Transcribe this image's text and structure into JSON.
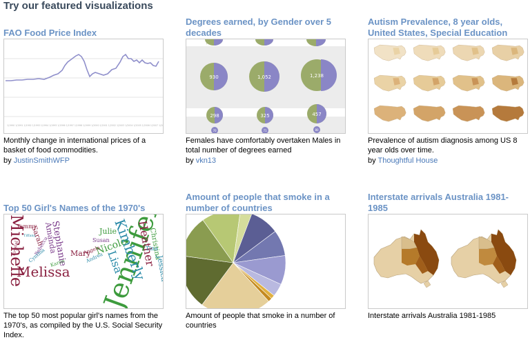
{
  "heading": "Try our featured visualizations",
  "by_label": "by",
  "cards": [
    {
      "title": "FAO Food Price Index",
      "description": "Monthly change in international prices of a basket of food commodities.",
      "author": "JustinSmithWFP"
    },
    {
      "title": "Degrees earned, by Gender over 5 decades",
      "description": "Females have comfortably overtaken Males in total number of degrees earned",
      "author": "vkn13",
      "bubble_labels": [
        "930",
        "1,052",
        "1,238",
        "298",
        "325",
        "457",
        "70",
        "71",
        "80"
      ]
    },
    {
      "title": "Autism Prevalence, 8 year olds, United States, Special Education",
      "description": "Prevalence of autism diagnosis among US 8 year olds over time.",
      "author": "Thoughtful House"
    },
    {
      "title": "Top 50 Girl's Names of the 1970's",
      "description": "The top 50 most popular girl's names from the 1970's, as compiled by the U.S. Social Security Index.",
      "words": [
        "Michelle",
        "Melissa",
        "Jennifer",
        "Kimberly",
        "Heather",
        "Lisa",
        "Nicole",
        "Stephanie",
        "Amanda",
        "Mary",
        "Julie",
        "Sarah",
        "Christina",
        "Tammy",
        "Susan",
        "Angela",
        "Tina",
        "Jessica",
        "Rebecca",
        "Cynthia",
        "Karen",
        "Tiffany",
        "Andrea",
        "Crystal"
      ]
    },
    {
      "title": "Amount of people that smoke in a number of countries",
      "description": "Amount of people that smoke in a number of countries"
    },
    {
      "title": "Interstate arrivals Australia 1981-1985",
      "description": "Interstate arrivals Australia 1981-1985"
    }
  ],
  "colors": {
    "title": "#6b93c5",
    "link": "#4a79b8",
    "heading": "#3a4a5c",
    "line": "#8f8fcb",
    "bubble_green": "#9bab6a",
    "bubble_purple": "#8a86c6"
  }
}
